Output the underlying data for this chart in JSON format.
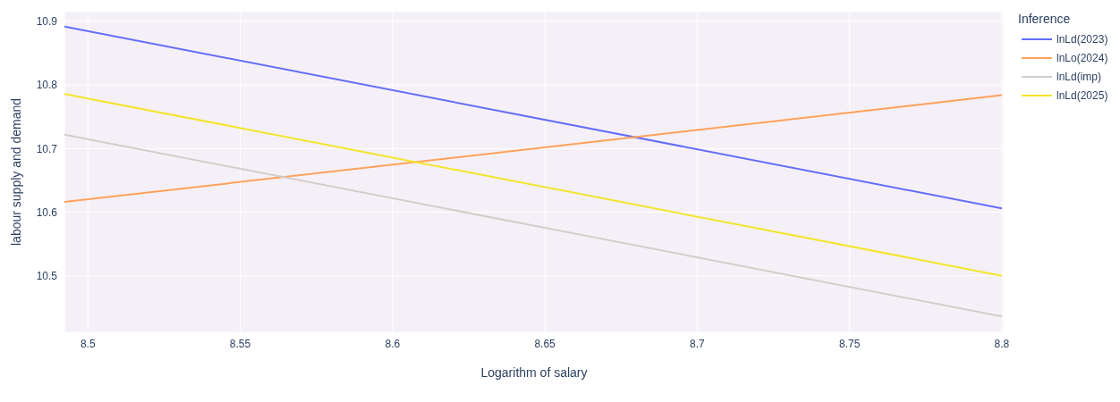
{
  "chart_data": {
    "type": "line",
    "xlabel": "Logarithm of salary",
    "ylabel": "labour supply and demand",
    "legend_title": "Inference",
    "x": [
      8.4923,
      8.8
    ],
    "series": [
      {
        "name": "lnLd(2023)",
        "color": "#636efa",
        "values": [
          10.892,
          10.606
        ]
      },
      {
        "name": "lnLo(2024)",
        "color": "#ffa15a",
        "values": [
          10.616,
          10.784
        ]
      },
      {
        "name": "lnLd(imp)",
        "color": "#d3cdc8",
        "values": [
          10.722,
          10.436
        ]
      },
      {
        "name": "lnLd(2025)",
        "color": "#f2e52a",
        "values": [
          10.786,
          10.5
        ]
      }
    ],
    "xlim": [
      8.4923,
      8.8006
    ],
    "xticks": [
      8.5,
      8.55,
      8.6,
      8.65,
      8.7,
      8.75,
      8.8
    ],
    "ylim": [
      10.411,
      10.9155
    ],
    "yticks": [
      10.5,
      10.6,
      10.7,
      10.8,
      10.9
    ],
    "grid": true,
    "legend": "top right",
    "marker": "none",
    "line_style": "solid"
  }
}
